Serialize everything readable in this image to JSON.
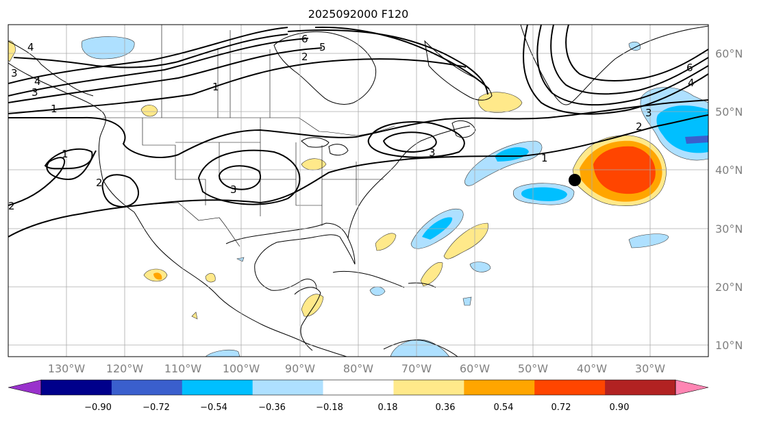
{
  "title": "2025092000 F120",
  "lat_labels": [
    "60°N",
    "50°N",
    "40°N",
    "30°N",
    "20°N",
    "10°N"
  ],
  "lon_labels": [
    "130°W",
    "120°W",
    "110°W",
    "100°W",
    "90°W",
    "80°W",
    "70°W",
    "60°W",
    "50°W",
    "40°W",
    "30°W"
  ],
  "colorbar": {
    "tick_labels": [
      "−0.90",
      "−0.72",
      "−0.54",
      "−0.36",
      "−0.18",
      "0.18",
      "0.36",
      "0.54",
      "0.72",
      "0.90"
    ],
    "colors": [
      "#9932cc",
      "#00008b",
      "#3a5fcd",
      "#00bfff",
      "#aee0ff",
      "#ffffff",
      "#ffe98a",
      "#ffa500",
      "#ff4500",
      "#b22222",
      "#ff85b3"
    ]
  },
  "contour_labels": [
    "4",
    "3",
    "4",
    "1",
    "1",
    "2",
    "2",
    "6",
    "5",
    "2",
    "1",
    "3",
    "3",
    "3",
    "1",
    "2",
    "3",
    "6",
    "4"
  ],
  "marker": {
    "lat": 38,
    "lon": -43
  }
}
